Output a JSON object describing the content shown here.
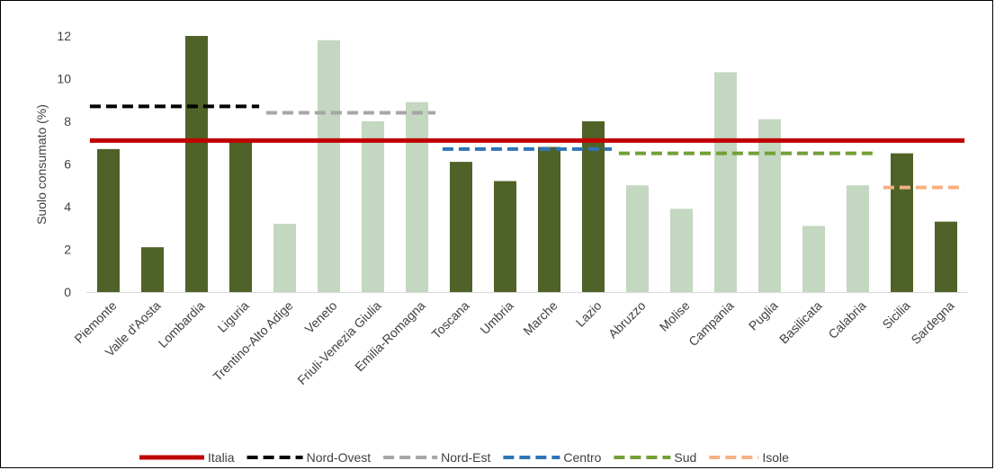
{
  "chart_data": {
    "type": "bar",
    "title": "",
    "xlabel": "",
    "ylabel": "Suolo consumato (%)",
    "ylim": [
      0,
      12
    ],
    "yticks": [
      0,
      2,
      4,
      6,
      8,
      10,
      12
    ],
    "grid": false,
    "legend_position": "bottom",
    "categories": [
      "Piemonte",
      "Valle d'Aosta",
      "Lombardia",
      "Liguria",
      "Trentino-Alto Adige",
      "Veneto",
      "Friuli-Venezia Giulia",
      "Emilia-Romagna",
      "Toscana",
      "Umbria",
      "Marche",
      "Lazio",
      "Abruzzo",
      "Molise",
      "Campania",
      "Puglia",
      "Basilicata",
      "Calabria",
      "Sicilia",
      "Sardegna"
    ],
    "values": [
      6.7,
      2.1,
      12.0,
      7.2,
      3.2,
      11.8,
      8.0,
      8.9,
      6.1,
      5.2,
      6.8,
      8.0,
      5.0,
      3.9,
      10.3,
      8.1,
      3.1,
      5.0,
      6.5,
      3.3
    ],
    "bar_colors": [
      "#4f6228",
      "#4f6228",
      "#4f6228",
      "#4f6228",
      "#c4d7c0",
      "#c4d7c0",
      "#c4d7c0",
      "#c4d7c0",
      "#4f6228",
      "#4f6228",
      "#4f6228",
      "#4f6228",
      "#c4d7c0",
      "#c4d7c0",
      "#c4d7c0",
      "#c4d7c0",
      "#c4d7c0",
      "#c4d7c0",
      "#4f6228",
      "#4f6228"
    ],
    "reference_lines": [
      {
        "name": "Italia",
        "value": 7.1,
        "from": 0,
        "to": 19,
        "color": "#c00000",
        "dashed": false
      },
      {
        "name": "Nord-Ovest",
        "value": 8.7,
        "from": 0,
        "to": 3,
        "color": "#000000",
        "dashed": true
      },
      {
        "name": "Nord-Est",
        "value": 8.4,
        "from": 4,
        "to": 7,
        "color": "#a6a6a6",
        "dashed": true
      },
      {
        "name": "Centro",
        "value": 6.7,
        "from": 8,
        "to": 11,
        "color": "#2e75b6",
        "dashed": true
      },
      {
        "name": "Sud",
        "value": 6.5,
        "from": 12,
        "to": 17,
        "color": "#70a036",
        "dashed": true
      },
      {
        "name": "Isole",
        "value": 4.9,
        "from": 18,
        "to": 19,
        "color": "#f4b183",
        "dashed": true
      }
    ]
  }
}
